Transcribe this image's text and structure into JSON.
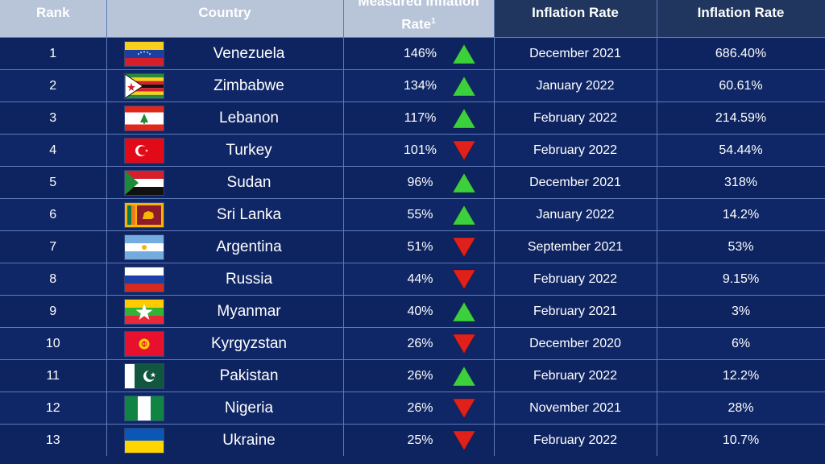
{
  "headers": {
    "rank": "Rank",
    "country": "Country",
    "measured_line1": "Measured Inflation",
    "measured_line2": "Rate",
    "measured_sup": "1",
    "inflation_rate_a": "Inflation Rate",
    "inflation_rate_b": "Inflation Rate"
  },
  "colors": {
    "background": "#0e2461",
    "header_light": "#b8c4d8",
    "grid": "#5d7bb8",
    "up": "#3cd13c",
    "down": "#e0201b"
  },
  "chart_data": {
    "type": "table",
    "columns": [
      "Rank",
      "Country",
      "Measured Inflation Rate",
      "Inflation Rate",
      "Inflation Rate"
    ],
    "rows": [
      {
        "rank": "1",
        "country": "Venezuela",
        "flag": "flag-venezuela",
        "measured": "146%",
        "trend": "up",
        "date": "December 2021",
        "rate": "686.40%"
      },
      {
        "rank": "2",
        "country": "Zimbabwe",
        "flag": "flag-zimbabwe",
        "measured": "134%",
        "trend": "up",
        "date": "January 2022",
        "rate": "60.61%"
      },
      {
        "rank": "3",
        "country": "Lebanon",
        "flag": "flag-lebanon",
        "measured": "117%",
        "trend": "up",
        "date": "February 2022",
        "rate": "214.59%"
      },
      {
        "rank": "4",
        "country": "Turkey",
        "flag": "flag-turkey",
        "measured": "101%",
        "trend": "down",
        "date": "February 2022",
        "rate": "54.44%"
      },
      {
        "rank": "5",
        "country": "Sudan",
        "flag": "flag-sudan",
        "measured": "96%",
        "trend": "up",
        "date": "December 2021",
        "rate": "318%"
      },
      {
        "rank": "6",
        "country": "Sri Lanka",
        "flag": "flag-sri-lanka",
        "measured": "55%",
        "trend": "up",
        "date": "January 2022",
        "rate": "14.2%"
      },
      {
        "rank": "7",
        "country": "Argentina",
        "flag": "flag-argentina",
        "measured": "51%",
        "trend": "down",
        "date": "September 2021",
        "rate": "53%"
      },
      {
        "rank": "8",
        "country": "Russia",
        "flag": "flag-russia",
        "measured": "44%",
        "trend": "down",
        "date": "February 2022",
        "rate": "9.15%"
      },
      {
        "rank": "9",
        "country": "Myanmar",
        "flag": "flag-myanmar",
        "measured": "40%",
        "trend": "up",
        "date": "February 2021",
        "rate": "3%"
      },
      {
        "rank": "10",
        "country": "Kyrgyzstan",
        "flag": "flag-kyrgyzstan",
        "measured": "26%",
        "trend": "down",
        "date": "December 2020",
        "rate": "6%"
      },
      {
        "rank": "11",
        "country": "Pakistan",
        "flag": "flag-pakistan",
        "measured": "26%",
        "trend": "up",
        "date": "February 2022",
        "rate": "12.2%"
      },
      {
        "rank": "12",
        "country": "Nigeria",
        "flag": "flag-nigeria",
        "measured": "26%",
        "trend": "down",
        "date": "November 2021",
        "rate": "28%"
      },
      {
        "rank": "13",
        "country": "Ukraine",
        "flag": "flag-ukraine",
        "measured": "25%",
        "trend": "down",
        "date": "February 2022",
        "rate": "10.7%"
      }
    ]
  }
}
